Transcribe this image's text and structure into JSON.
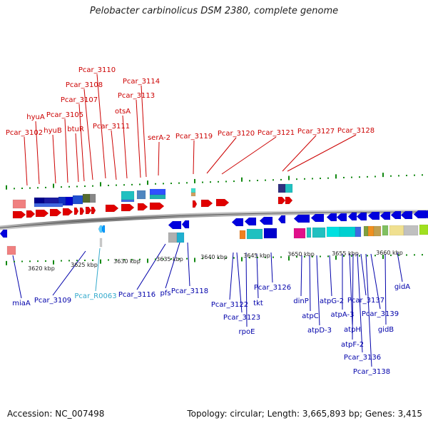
{
  "header": {
    "title": "Pelobacter carbinolicus DSM 2380, complete genome"
  },
  "footer": {
    "accession": "Accession: NC_007498",
    "summary": "Topology: circular; Length: 3,665,893 bp; Genes: 3,415"
  },
  "colors": {
    "top_label": "#cc0000",
    "bottom_label": "#0000aa",
    "rna_label": "#33aacc",
    "backbone": "#888888",
    "tick": "#118811"
  },
  "scale": {
    "kbp_labels": [
      "3620 kbp",
      "3625 kbp",
      "3630 kbp",
      "3635 kbp",
      "3640 kbp",
      "3645 kbp",
      "3650 kbp",
      "3655 kbp",
      "3660 kbp"
    ]
  },
  "top_labels": [
    "Pcar_3110",
    "Pcar_3108",
    "Pcar_3107",
    "Pcar_3114",
    "Pcar_3113",
    "otsA",
    "hyuA",
    "Pcar_3105",
    "hyuB",
    "btuR",
    "Pcar_3111",
    "Pcar_3102",
    "serA-2",
    "Pcar_3119",
    "Pcar_3120",
    "Pcar_3121",
    "Pcar_3127",
    "Pcar_3128"
  ],
  "bottom_labels": [
    "miaA",
    "Pcar_3109",
    "Pcar_R0063",
    "Pcar_3116",
    "pfs",
    "Pcar_3118",
    "Pcar_3122",
    "Pcar_3123",
    "rpoE",
    "tkt",
    "Pcar_3126",
    "dinP",
    "atpC",
    "atpD-3",
    "atpG-2",
    "atpA-3",
    "atpH",
    "atpF-2",
    "Pcar_3136",
    "Pcar_3137",
    "Pcar_3138",
    "Pcar_3139",
    "gidB",
    "gidA"
  ]
}
